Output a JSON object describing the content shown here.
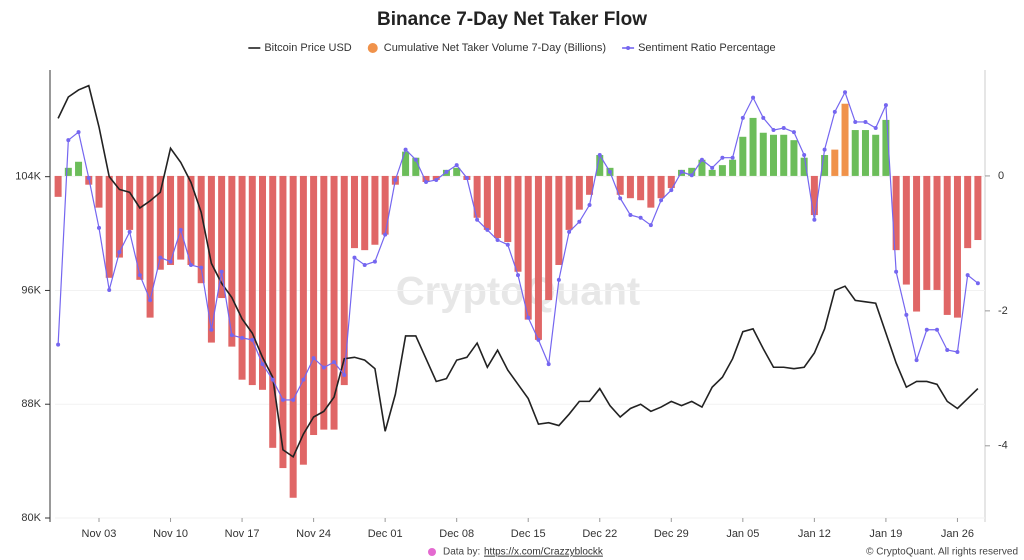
{
  "chart_data": {
    "type": "combo",
    "title": "Binance 7-Day Net Taker Flow",
    "watermark": "CryptoQuant",
    "source_label": "Data by:",
    "source_url": "https://x.com/Crazzyblockk",
    "credit": "© CryptoQuant. All rights reserved",
    "categories": [
      null,
      null,
      null,
      null,
      "Nov 03",
      null,
      null,
      null,
      null,
      null,
      null,
      "Nov 10",
      null,
      null,
      null,
      null,
      null,
      null,
      "Nov 17",
      null,
      null,
      null,
      null,
      null,
      null,
      "Nov 24",
      null,
      null,
      null,
      null,
      null,
      null,
      "Dec 01",
      null,
      null,
      null,
      null,
      null,
      null,
      "Dec 08",
      null,
      null,
      null,
      null,
      null,
      null,
      "Dec 15",
      null,
      null,
      null,
      null,
      null,
      null,
      "Dec 22",
      null,
      null,
      null,
      null,
      null,
      null,
      "Dec 29",
      null,
      null,
      null,
      null,
      null,
      null,
      "Jan 05",
      null,
      null,
      null,
      null,
      null,
      null,
      "Jan 12",
      null,
      null,
      null,
      null,
      null,
      null,
      "Jan 19",
      null,
      null,
      null,
      null,
      null,
      null,
      "Jan 26",
      null,
      null
    ],
    "ylim": [
      80000,
      111500
    ],
    "yticks": [
      {
        "value": 80000,
        "label": "80K"
      },
      {
        "value": 88000,
        "label": "88K"
      },
      {
        "value": 96000,
        "label": "96K"
      },
      {
        "value": 104000,
        "label": "104K"
      }
    ],
    "y2lim": [
      -5.07,
      1.57
    ],
    "y2ticks": [
      -4,
      -2,
      0
    ],
    "series": [
      {
        "name": "Cumulative Net Taker Volume 7-Day (Billions)",
        "type": "bar",
        "axis": "y2",
        "color": "#f0924a",
        "positive_color": "#6cbd5a",
        "negative_color": "#e06666",
        "highlight": [
          76,
          77
        ],
        "values": [
          -0.31,
          0.12,
          0.21,
          -0.13,
          -0.47,
          -1.51,
          -1.21,
          -0.8,
          -1.54,
          -2.1,
          -1.39,
          -1.32,
          -1.24,
          -1.32,
          -1.59,
          -2.47,
          -1.81,
          -2.53,
          -3.02,
          -3.1,
          -3.17,
          -4.03,
          -4.33,
          -4.77,
          -4.28,
          -3.84,
          -3.76,
          -3.76,
          -3.1,
          -1.07,
          -1.1,
          -1.02,
          -0.87,
          -0.13,
          0.36,
          0.27,
          -0.09,
          -0.06,
          0.09,
          0.12,
          -0.06,
          -0.62,
          -0.8,
          -0.92,
          -0.98,
          -1.42,
          -2.13,
          -2.43,
          -1.84,
          -1.32,
          -0.8,
          -0.5,
          -0.28,
          0.31,
          0.12,
          -0.28,
          -0.33,
          -0.36,
          -0.47,
          -0.33,
          -0.18,
          0.09,
          0.12,
          0.24,
          0.09,
          0.16,
          0.24,
          0.58,
          0.86,
          0.64,
          0.61,
          0.61,
          0.53,
          0.27,
          -0.58,
          0.31,
          0.39,
          1.07,
          0.68,
          0.68,
          0.61,
          0.83,
          -1.1,
          -1.61,
          -2.01,
          -1.69,
          -1.69,
          -2.06,
          -2.1,
          -1.07,
          -0.95
        ]
      },
      {
        "name": "Bitcoin Price USD",
        "type": "line",
        "axis": "y",
        "color": "#222222",
        "values": [
          108100,
          109600,
          110100,
          110400,
          107500,
          104000,
          103100,
          102900,
          101800,
          102300,
          102900,
          106000,
          105000,
          103600,
          101500,
          97900,
          96500,
          95500,
          94000,
          93000,
          91300,
          89900,
          84800,
          84300,
          85900,
          87100,
          87500,
          88500,
          91200,
          91300,
          91100,
          90500,
          86100,
          88700,
          92800,
          92800,
          91200,
          89600,
          89800,
          91100,
          91300,
          92300,
          90600,
          91800,
          90400,
          89400,
          88400,
          86600,
          86700,
          86500,
          87300,
          88200,
          88200,
          89100,
          87900,
          87100,
          87700,
          88000,
          87500,
          87800,
          88200,
          87900,
          88200,
          87800,
          89200,
          89900,
          91200,
          93100,
          93300,
          91900,
          90600,
          90600,
          90500,
          90600,
          91600,
          93300,
          96000,
          96300,
          95300,
          95200,
          95100,
          93000,
          90900,
          89200,
          89600,
          89600,
          89400,
          88200,
          87700,
          88400,
          89100
        ]
      },
      {
        "name": "Sentiment Ratio Percentage",
        "type": "line",
        "markers": true,
        "axis": "y2",
        "color": "#7566f0",
        "values": [
          -2.5,
          0.53,
          0.65,
          -0.03,
          -0.77,
          -1.69,
          -1.13,
          -0.83,
          -1.47,
          -1.84,
          -1.21,
          -1.27,
          -0.8,
          -1.32,
          -1.36,
          -2.28,
          -1.42,
          -2.36,
          -2.4,
          -2.43,
          -2.79,
          -3.02,
          -3.32,
          -3.32,
          -3.02,
          -2.7,
          -2.84,
          -2.76,
          -2.95,
          -1.21,
          -1.32,
          -1.27,
          -0.87,
          -0.06,
          0.39,
          0.24,
          -0.09,
          -0.06,
          0.06,
          0.16,
          -0.03,
          -0.65,
          -0.8,
          -0.95,
          -1.02,
          -1.47,
          -2.1,
          -2.43,
          -2.79,
          -1.54,
          -0.83,
          -0.68,
          -0.43,
          0.31,
          0.06,
          -0.33,
          -0.58,
          -0.62,
          -0.73,
          -0.36,
          -0.21,
          0.06,
          0.01,
          0.24,
          0.12,
          0.27,
          0.27,
          0.86,
          1.16,
          0.86,
          0.68,
          0.71,
          0.65,
          0.31,
          -0.65,
          0.39,
          0.95,
          1.24,
          0.8,
          0.8,
          0.71,
          1.05,
          -1.42,
          -2.06,
          -2.73,
          -2.28,
          -2.28,
          -2.58,
          -2.61,
          -1.47,
          -1.59
        ]
      }
    ],
    "legend_order": [
      1,
      0,
      2
    ]
  }
}
